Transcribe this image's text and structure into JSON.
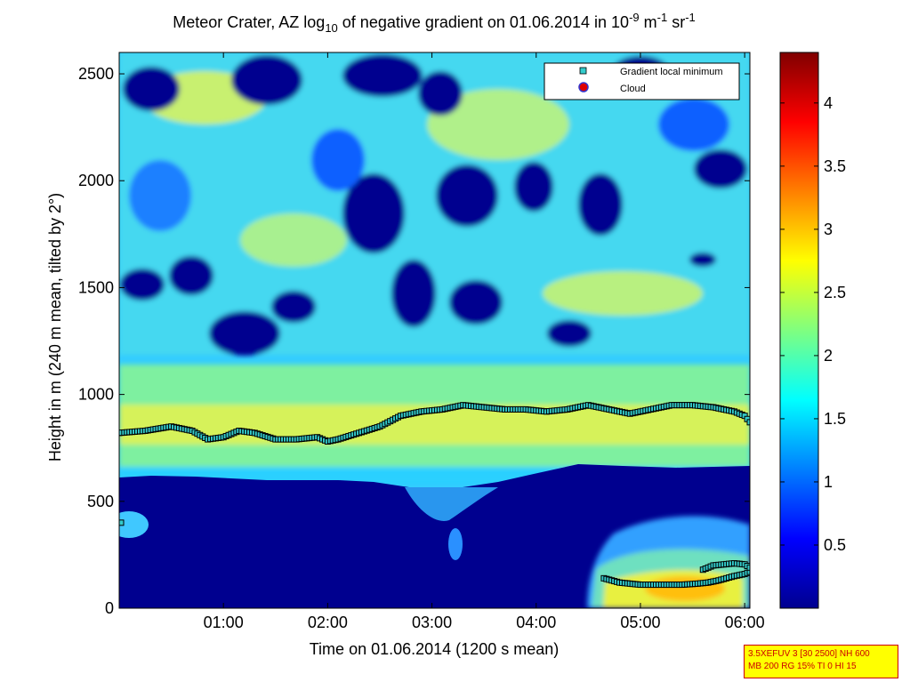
{
  "chart_data": {
    "type": "heatmap",
    "title_parts": {
      "prefix": "Meteor Crater, AZ log",
      "log_base": "10",
      "middle": " of negative gradient on 01.06.2014 in 10",
      "exp1": "-9",
      "unit1": " m",
      "exp2": "-1",
      "unit2": " sr",
      "exp3": "-1"
    },
    "xlabel": "Time on 01.06.2014 (1200 s mean)",
    "ylabel": "Height in m (240 m mean, tilted by 2°)",
    "xlim_hours": [
      0,
      6.05
    ],
    "ylim": [
      0,
      2600
    ],
    "x_ticks": [
      {
        "hour": 1,
        "label": "01:00"
      },
      {
        "hour": 2,
        "label": "02:00"
      },
      {
        "hour": 3,
        "label": "03:00"
      },
      {
        "hour": 4,
        "label": "04:00"
      },
      {
        "hour": 5,
        "label": "05:00"
      },
      {
        "hour": 6,
        "label": "06:00"
      }
    ],
    "y_ticks": [
      {
        "value": 0,
        "label": "0"
      },
      {
        "value": 500,
        "label": "500"
      },
      {
        "value": 1000,
        "label": "1000"
      },
      {
        "value": 1500,
        "label": "1500"
      },
      {
        "value": 2000,
        "label": "2000"
      },
      {
        "value": 2500,
        "label": "2500"
      }
    ],
    "colorbar": {
      "range": [
        0,
        4.4
      ],
      "colormap": "jet",
      "ticks": [
        {
          "value": 0.5,
          "label": "0.5"
        },
        {
          "value": 1,
          "label": "1"
        },
        {
          "value": 1.5,
          "label": "1.5"
        },
        {
          "value": 2,
          "label": "2"
        },
        {
          "value": 2.5,
          "label": "2.5"
        },
        {
          "value": 3,
          "label": "3"
        },
        {
          "value": 3.5,
          "label": "3.5"
        },
        {
          "value": 4,
          "label": "4"
        }
      ]
    },
    "legend": {
      "placement": "top-right",
      "entries": [
        {
          "name": "Gradient local minimum",
          "marker": "square",
          "color": "#33cccc"
        },
        {
          "name": "Cloud",
          "marker": "circle",
          "color": "#dd0000",
          "edge": "#3333cc"
        }
      ]
    },
    "gradient_minimum_main_layer": {
      "x_hours": [
        0,
        0.25,
        0.5,
        0.7,
        0.85,
        1.0,
        1.15,
        1.3,
        1.5,
        1.7,
        1.9,
        2.0,
        2.1,
        2.3,
        2.5,
        2.7,
        2.9,
        3.1,
        3.3,
        3.5,
        3.7,
        3.9,
        4.1,
        4.3,
        4.5,
        4.7,
        4.9,
        5.1,
        5.3,
        5.5,
        5.7,
        5.9,
        6.0,
        6.05
      ],
      "height_m": [
        820,
        830,
        850,
        830,
        790,
        800,
        830,
        820,
        790,
        790,
        800,
        780,
        790,
        820,
        850,
        900,
        920,
        930,
        950,
        940,
        930,
        930,
        920,
        930,
        950,
        930,
        910,
        930,
        950,
        950,
        940,
        920,
        900,
        870
      ]
    },
    "gradient_minimum_low_layer_1": {
      "x_hours": [
        4.65,
        4.8,
        5.0,
        5.2,
        5.4,
        5.55,
        5.65,
        5.75,
        5.9,
        6.0,
        6.05
      ],
      "height_m": [
        140,
        120,
        110,
        110,
        110,
        115,
        120,
        130,
        150,
        160,
        170
      ]
    },
    "gradient_minimum_low_layer_2": {
      "x_hours": [
        5.6,
        5.7,
        5.8,
        5.9,
        6.0,
        6.05
      ],
      "height_m": [
        180,
        200,
        205,
        210,
        205,
        190
      ]
    },
    "gradient_minimum_isolated": [
      {
        "x_hour": 0.0,
        "height_m": 400
      }
    ],
    "cloud_points": [],
    "field_description": {
      "boundary_layer_top_m": 600,
      "blue_low_region_below_m": 600,
      "mixed_layer_bright_band_m": [
        700,
        1050
      ],
      "low_bright_patch": {
        "x_hours": [
          4.6,
          6.05
        ],
        "height_m": [
          60,
          350
        ],
        "max_value": 3.2
      }
    }
  },
  "info_box": {
    "line1": "3.5XEFUV 3 [30 2500] NH 600",
    "line2": "MB 200 RG 15% TI 0 HI 15"
  }
}
